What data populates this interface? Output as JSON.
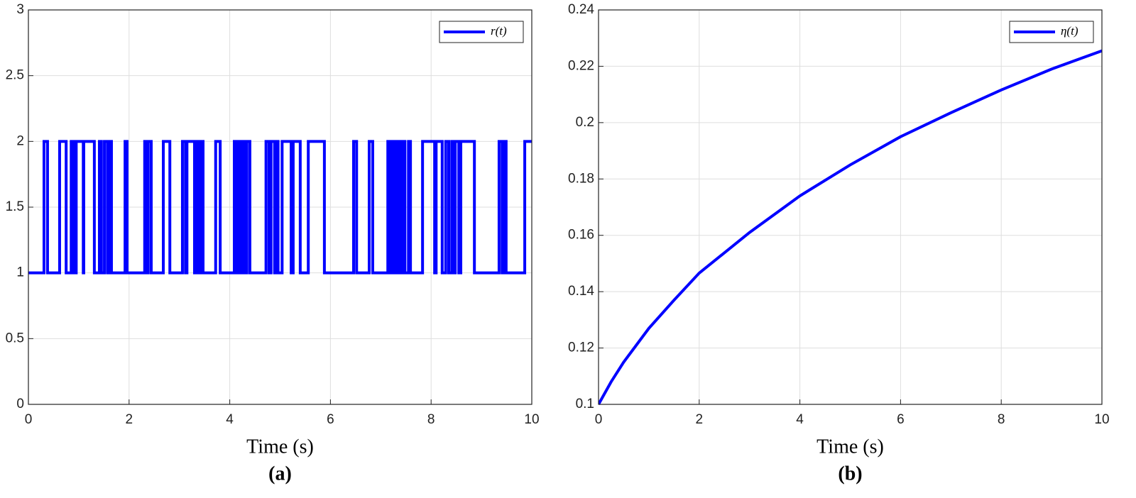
{
  "chart_data": [
    {
      "type": "step",
      "panel_label": "(a)",
      "xlabel": "Time (s)",
      "grid": true,
      "legend": "northeast",
      "xlim": [
        0,
        10
      ],
      "ylim": [
        0,
        3
      ],
      "xticks": [
        0,
        2,
        4,
        6,
        8,
        10
      ],
      "yticks": [
        0,
        0.5,
        1,
        1.5,
        2,
        2.5,
        3
      ],
      "x": [
        0,
        0.31,
        0.38,
        0.62,
        0.75,
        0.85,
        0.9,
        0.95,
        1.09,
        1.1,
        1.31,
        1.41,
        1.45,
        1.51,
        1.57,
        1.62,
        1.65,
        1.92,
        1.96,
        2.31,
        2.36,
        2.38,
        2.44,
        2.68,
        2.81,
        3.06,
        3.12,
        3.15,
        3.3,
        3.33,
        3.36,
        3.39,
        3.41,
        3.44,
        3.47,
        3.72,
        3.81,
        4.09,
        4.12,
        4.15,
        4.19,
        4.22,
        4.25,
        4.27,
        4.32,
        4.34,
        4.4,
        4.72,
        4.78,
        4.82,
        4.89,
        4.92,
        4.96,
        5.04,
        5.22,
        5.26,
        5.4,
        5.56,
        5.88,
        6.46,
        6.52,
        6.77,
        6.84,
        7.14,
        7.18,
        7.21,
        7.24,
        7.26,
        7.29,
        7.32,
        7.35,
        7.38,
        7.4,
        7.43,
        7.48,
        7.55,
        7.59,
        7.83,
        8.07,
        8.1,
        8.22,
        8.29,
        8.35,
        8.41,
        8.45,
        8.48,
        8.55,
        8.59,
        8.86,
        9.35,
        9.41,
        9.44,
        9.49,
        9.86,
        10
      ],
      "series": [
        {
          "name": "r(t)",
          "color": "#0000ff",
          "values": [
            1,
            2,
            1,
            2,
            1,
            2,
            1,
            2,
            1,
            2,
            1,
            2,
            1,
            2,
            1,
            2,
            1,
            2,
            1,
            2,
            1,
            2,
            1,
            2,
            1,
            2,
            1,
            2,
            1,
            2,
            1,
            2,
            1,
            2,
            1,
            2,
            1,
            2,
            1,
            2,
            1,
            2,
            1,
            2,
            1,
            2,
            1,
            2,
            1,
            2,
            1,
            2,
            1,
            2,
            1,
            2,
            1,
            2,
            1,
            2,
            1,
            2,
            1,
            2,
            1,
            2,
            1,
            2,
            1,
            2,
            1,
            2,
            1,
            2,
            1,
            2,
            1,
            2,
            1,
            2,
            1,
            2,
            1,
            2,
            1,
            2,
            1,
            2,
            1,
            2,
            1,
            2,
            1,
            2,
            2
          ]
        }
      ]
    },
    {
      "type": "line",
      "panel_label": "(b)",
      "xlabel": "Time (s)",
      "grid": true,
      "legend": "northeast",
      "xlim": [
        0,
        10
      ],
      "ylim": [
        0.1,
        0.24
      ],
      "xticks": [
        0,
        2,
        4,
        6,
        8,
        10
      ],
      "yticks": [
        0.1,
        0.12,
        0.14,
        0.16,
        0.18,
        0.2,
        0.22,
        0.24
      ],
      "x": [
        0,
        0.25,
        0.5,
        1,
        1.5,
        2,
        3,
        4,
        5,
        6,
        7,
        8,
        9,
        10
      ],
      "series": [
        {
          "name": "η(t)",
          "color": "#0000ff",
          "values": [
            0.1,
            0.108,
            0.115,
            0.127,
            0.137,
            0.1466,
            0.161,
            0.174,
            0.185,
            0.195,
            0.2035,
            0.2116,
            0.219,
            0.2255
          ]
        }
      ]
    }
  ]
}
